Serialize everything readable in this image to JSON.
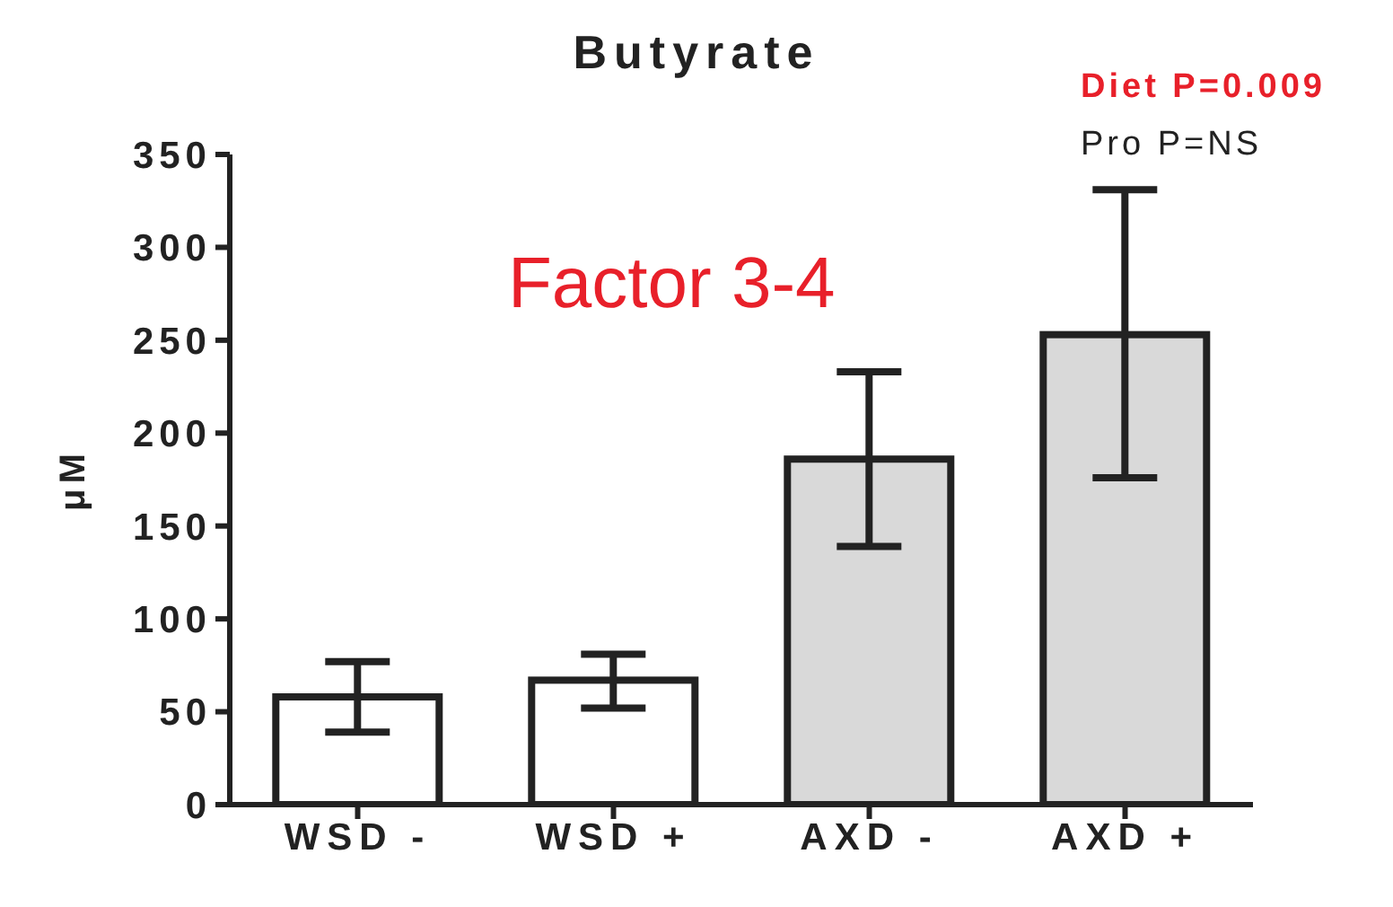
{
  "chart_data": {
    "type": "bar",
    "title": "Butyrate",
    "ylabel": "μM",
    "categories": [
      "WSD -",
      "WSD +",
      "AXD -",
      "AXD +"
    ],
    "values": [
      58,
      67,
      186,
      253
    ],
    "errors": [
      [
        39,
        77
      ],
      [
        52,
        81
      ],
      [
        139,
        233
      ],
      [
        176,
        331
      ]
    ],
    "colors": [
      "#ffffff",
      "#ffffff",
      "#d9d9d9",
      "#d9d9d9"
    ],
    "ylim": [
      0,
      350
    ],
    "yticks": [
      0,
      50,
      100,
      150,
      200,
      250,
      300,
      350
    ],
    "grid": false,
    "legend": false,
    "annotations": [
      "Factor 3-4",
      "Diet P=0.009",
      "Pro P=NS"
    ]
  }
}
